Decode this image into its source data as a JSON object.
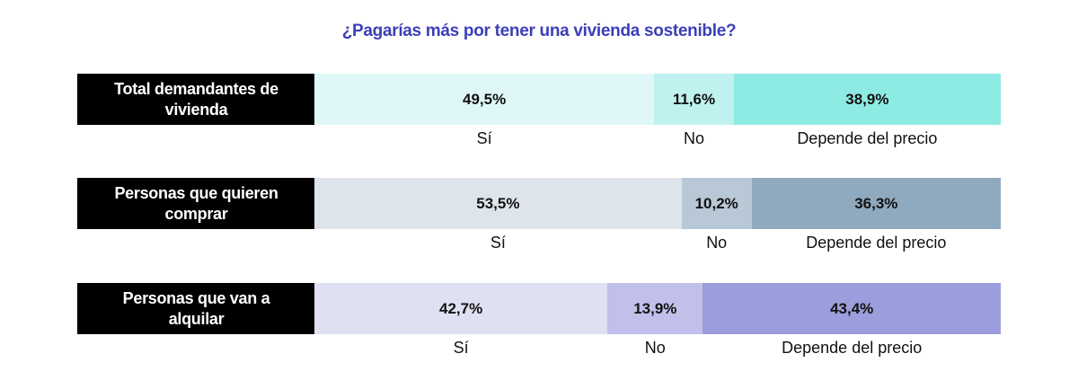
{
  "chart_data": {
    "type": "bar",
    "orientation": "horizontal-stacked",
    "title": "¿Pagarías más por tener una vivienda sostenible?",
    "categories": [
      "Sí",
      "No",
      "Depende del precio"
    ],
    "rows": [
      {
        "label": "Total demandantes de vivienda",
        "values": [
          49.5,
          11.6,
          38.9
        ],
        "value_labels": [
          "49,5%",
          "11,6%",
          "38,9%"
        ],
        "colors": [
          "#dff8f7",
          "#bff2ef",
          "#8eebe4"
        ]
      },
      {
        "label": "Personas que quieren comprar",
        "values": [
          53.5,
          10.2,
          36.3
        ],
        "value_labels": [
          "53,5%",
          "10,2%",
          "36,3%"
        ],
        "colors": [
          "#dde4ec",
          "#b9c8d6",
          "#8fa9be"
        ]
      },
      {
        "label": "Personas que van a alquilar",
        "values": [
          42.7,
          13.9,
          43.4
        ],
        "value_labels": [
          "42,7%",
          "13,9%",
          "43,4%"
        ],
        "colors": [
          "#e0e0f3",
          "#c0c0ea",
          "#9c9ddc"
        ]
      }
    ],
    "unit": "%",
    "xlim": [
      0,
      100
    ],
    "legend": "none",
    "grid": false
  }
}
